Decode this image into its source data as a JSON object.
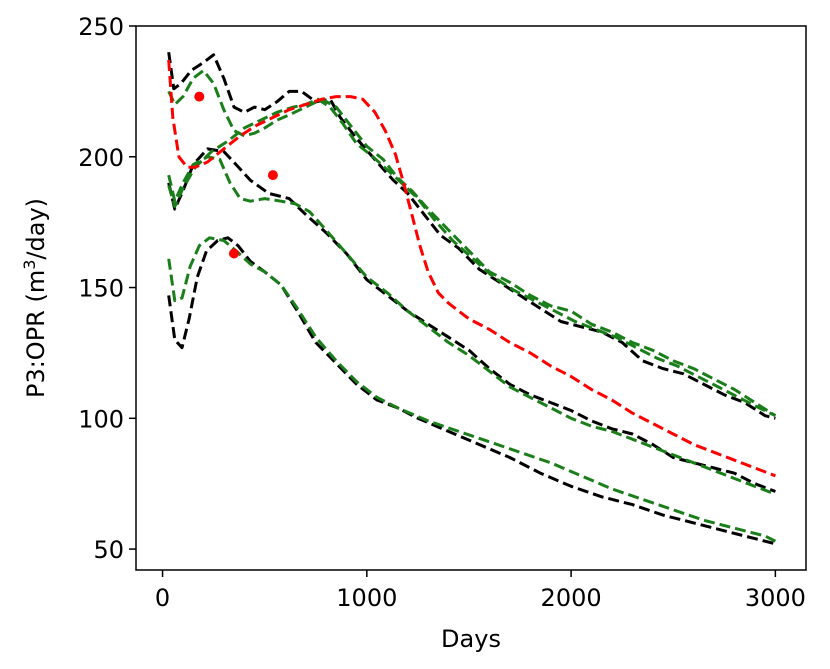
{
  "chart_data": {
    "type": "line",
    "xlabel": "Days",
    "ylabel_prefix": "P3:OPR (m",
    "ylabel_sup": "3",
    "ylabel_suffix": "/day)",
    "xlim": [
      -130,
      3150
    ],
    "ylim": [
      42,
      250
    ],
    "xticks": [
      0,
      1000,
      2000,
      3000
    ],
    "yticks": [
      50,
      100,
      150,
      200,
      250
    ],
    "grid": false,
    "colors": {
      "black": "#000000",
      "green": "#1a7f1a",
      "red": "#ff0000"
    },
    "series": [
      {
        "color": "black",
        "style": "dashed",
        "points": [
          [
            30,
            147
          ],
          [
            60,
            130
          ],
          [
            95,
            127
          ],
          [
            130,
            138
          ],
          [
            170,
            154
          ],
          [
            215,
            164
          ],
          [
            270,
            168
          ],
          [
            320,
            169
          ],
          [
            370,
            166
          ],
          [
            430,
            160
          ],
          [
            500,
            156
          ],
          [
            580,
            151
          ],
          [
            660,
            141
          ],
          [
            750,
            129
          ],
          [
            850,
            121
          ],
          [
            950,
            113
          ],
          [
            1050,
            107
          ],
          [
            1150,
            104
          ],
          [
            1250,
            100
          ],
          [
            1400,
            95
          ],
          [
            1550,
            90
          ],
          [
            1700,
            85
          ],
          [
            1850,
            79
          ],
          [
            2000,
            74
          ],
          [
            2150,
            70
          ],
          [
            2300,
            67
          ],
          [
            2450,
            63
          ],
          [
            2600,
            60
          ],
          [
            2750,
            57
          ],
          [
            2900,
            54
          ],
          [
            3000,
            52
          ]
        ]
      },
      {
        "color": "green",
        "style": "dashed",
        "points": [
          [
            30,
            161
          ],
          [
            60,
            145
          ],
          [
            95,
            146
          ],
          [
            135,
            158
          ],
          [
            180,
            166
          ],
          [
            230,
            169
          ],
          [
            300,
            168
          ],
          [
            360,
            164
          ],
          [
            430,
            159
          ],
          [
            500,
            156
          ],
          [
            580,
            151
          ],
          [
            660,
            142
          ],
          [
            750,
            131
          ],
          [
            850,
            122
          ],
          [
            950,
            114
          ],
          [
            1050,
            108
          ],
          [
            1150,
            104
          ],
          [
            1300,
            99
          ],
          [
            1450,
            95
          ],
          [
            1600,
            91
          ],
          [
            1750,
            87
          ],
          [
            1900,
            83
          ],
          [
            2050,
            78
          ],
          [
            2200,
            73
          ],
          [
            2350,
            69
          ],
          [
            2500,
            65
          ],
          [
            2650,
            61
          ],
          [
            2800,
            58
          ],
          [
            2950,
            55
          ],
          [
            3000,
            53
          ]
        ]
      },
      {
        "color": "black",
        "style": "dashed",
        "points": [
          [
            30,
            190
          ],
          [
            60,
            180
          ],
          [
            100,
            187
          ],
          [
            150,
            197
          ],
          [
            220,
            203
          ],
          [
            300,
            202
          ],
          [
            360,
            197
          ],
          [
            430,
            191
          ],
          [
            520,
            186
          ],
          [
            620,
            184
          ],
          [
            700,
            178
          ],
          [
            800,
            171
          ],
          [
            900,
            163
          ],
          [
            1000,
            153
          ],
          [
            1100,
            147
          ],
          [
            1200,
            141
          ],
          [
            1300,
            136
          ],
          [
            1400,
            131
          ],
          [
            1500,
            126
          ],
          [
            1600,
            119
          ],
          [
            1700,
            113
          ],
          [
            1800,
            109
          ],
          [
            1900,
            106
          ],
          [
            2000,
            103
          ],
          [
            2100,
            99
          ],
          [
            2200,
            96
          ],
          [
            2300,
            94
          ],
          [
            2400,
            90
          ],
          [
            2500,
            85
          ],
          [
            2600,
            83
          ],
          [
            2700,
            81
          ],
          [
            2800,
            79
          ],
          [
            2900,
            75
          ],
          [
            3000,
            72
          ]
        ]
      },
      {
        "color": "green",
        "style": "dashed",
        "points": [
          [
            30,
            193
          ],
          [
            60,
            183
          ],
          [
            100,
            190
          ],
          [
            150,
            197
          ],
          [
            220,
            200
          ],
          [
            280,
            199
          ],
          [
            330,
            190
          ],
          [
            380,
            184
          ],
          [
            430,
            183
          ],
          [
            500,
            184
          ],
          [
            580,
            183
          ],
          [
            650,
            182
          ],
          [
            720,
            179
          ],
          [
            800,
            172
          ],
          [
            900,
            163
          ],
          [
            1000,
            154
          ],
          [
            1100,
            148
          ],
          [
            1200,
            141
          ],
          [
            1300,
            135
          ],
          [
            1400,
            129
          ],
          [
            1500,
            124
          ],
          [
            1600,
            118
          ],
          [
            1700,
            112
          ],
          [
            1800,
            108
          ],
          [
            1900,
            104
          ],
          [
            2000,
            100
          ],
          [
            2100,
            97
          ],
          [
            2200,
            95
          ],
          [
            2300,
            92
          ],
          [
            2400,
            89
          ],
          [
            2500,
            86
          ],
          [
            2600,
            83
          ],
          [
            2700,
            80
          ],
          [
            2800,
            77
          ],
          [
            2900,
            74
          ],
          [
            3000,
            71
          ]
        ]
      },
      {
        "color": "black",
        "style": "dashed",
        "points": [
          [
            30,
            240
          ],
          [
            55,
            226
          ],
          [
            90,
            228
          ],
          [
            140,
            233
          ],
          [
            200,
            236
          ],
          [
            250,
            239
          ],
          [
            300,
            230
          ],
          [
            350,
            219
          ],
          [
            400,
            217
          ],
          [
            450,
            219
          ],
          [
            500,
            218
          ],
          [
            560,
            221
          ],
          [
            620,
            225
          ],
          [
            680,
            225
          ],
          [
            750,
            221
          ],
          [
            820,
            222
          ],
          [
            870,
            215
          ],
          [
            950,
            207
          ],
          [
            1050,
            198
          ],
          [
            1130,
            191
          ],
          [
            1200,
            186
          ],
          [
            1280,
            178
          ],
          [
            1360,
            170
          ],
          [
            1450,
            165
          ],
          [
            1550,
            157
          ],
          [
            1650,
            152
          ],
          [
            1750,
            147
          ],
          [
            1850,
            142
          ],
          [
            1950,
            137
          ],
          [
            2050,
            135
          ],
          [
            2150,
            133
          ],
          [
            2250,
            129
          ],
          [
            2350,
            122
          ],
          [
            2450,
            119
          ],
          [
            2550,
            117
          ],
          [
            2650,
            113
          ],
          [
            2750,
            109
          ],
          [
            2850,
            106
          ],
          [
            2950,
            101
          ],
          [
            3000,
            100
          ]
        ]
      },
      {
        "color": "green",
        "style": "dashed",
        "points": [
          [
            30,
            225
          ],
          [
            60,
            220
          ],
          [
            100,
            223
          ],
          [
            150,
            230
          ],
          [
            200,
            233
          ],
          [
            250,
            228
          ],
          [
            300,
            218
          ],
          [
            350,
            210
          ],
          [
            400,
            208
          ],
          [
            450,
            209
          ],
          [
            500,
            211
          ],
          [
            560,
            214
          ],
          [
            620,
            216
          ],
          [
            700,
            219
          ],
          [
            780,
            222
          ],
          [
            850,
            219
          ],
          [
            920,
            212
          ],
          [
            1000,
            204
          ],
          [
            1080,
            199
          ],
          [
            1150,
            192
          ],
          [
            1220,
            187
          ],
          [
            1300,
            180
          ],
          [
            1400,
            172
          ],
          [
            1500,
            164
          ],
          [
            1600,
            156
          ],
          [
            1700,
            152
          ],
          [
            1800,
            147
          ],
          [
            1900,
            143
          ],
          [
            2000,
            141
          ],
          [
            2100,
            136
          ],
          [
            2200,
            133
          ],
          [
            2300,
            129
          ],
          [
            2400,
            126
          ],
          [
            2500,
            122
          ],
          [
            2600,
            119
          ],
          [
            2700,
            115
          ],
          [
            2800,
            111
          ],
          [
            2900,
            106
          ],
          [
            3000,
            101
          ]
        ]
      },
      {
        "color": "green",
        "style": "dashed",
        "points": [
          [
            30,
            189
          ],
          [
            60,
            181
          ],
          [
            100,
            188
          ],
          [
            160,
            196
          ],
          [
            240,
            202
          ],
          [
            320,
            206
          ],
          [
            400,
            211
          ],
          [
            480,
            214
          ],
          [
            560,
            217
          ],
          [
            640,
            219
          ],
          [
            700,
            220
          ],
          [
            760,
            222
          ],
          [
            820,
            219
          ],
          [
            880,
            213
          ],
          [
            950,
            205
          ],
          [
            1030,
            200
          ],
          [
            1100,
            195
          ],
          [
            1170,
            190
          ],
          [
            1250,
            184
          ],
          [
            1330,
            176
          ],
          [
            1420,
            168
          ],
          [
            1520,
            161
          ],
          [
            1620,
            154
          ],
          [
            1720,
            149
          ],
          [
            1820,
            145
          ],
          [
            1920,
            141
          ],
          [
            2020,
            137
          ],
          [
            2120,
            134
          ],
          [
            2220,
            131
          ],
          [
            2320,
            127
          ],
          [
            2420,
            123
          ],
          [
            2520,
            120
          ],
          [
            2620,
            116
          ],
          [
            2720,
            112
          ],
          [
            2820,
            108
          ],
          [
            2920,
            104
          ],
          [
            3000,
            101
          ]
        ]
      },
      {
        "color": "red",
        "style": "dashed",
        "points": [
          [
            30,
            237
          ],
          [
            50,
            215
          ],
          [
            80,
            200
          ],
          [
            120,
            196
          ],
          [
            160,
            196
          ],
          [
            220,
            198
          ],
          [
            300,
            203
          ],
          [
            380,
            208
          ],
          [
            460,
            212
          ],
          [
            540,
            215
          ],
          [
            620,
            218
          ],
          [
            700,
            220
          ],
          [
            780,
            222
          ],
          [
            850,
            223
          ],
          [
            920,
            223
          ],
          [
            980,
            222
          ],
          [
            1040,
            217
          ],
          [
            1090,
            210
          ],
          [
            1140,
            201
          ],
          [
            1180,
            190
          ],
          [
            1220,
            178
          ],
          [
            1260,
            166
          ],
          [
            1300,
            156
          ],
          [
            1350,
            148
          ],
          [
            1400,
            144
          ],
          [
            1500,
            138
          ],
          [
            1600,
            134
          ],
          [
            1700,
            129
          ],
          [
            1800,
            125
          ],
          [
            1900,
            120
          ],
          [
            2000,
            116
          ],
          [
            2100,
            111
          ],
          [
            2200,
            107
          ],
          [
            2300,
            102
          ],
          [
            2400,
            98
          ],
          [
            2500,
            94
          ],
          [
            2600,
            90
          ],
          [
            2700,
            87
          ],
          [
            2800,
            84
          ],
          [
            2900,
            81
          ],
          [
            3000,
            78
          ]
        ]
      }
    ],
    "observations": {
      "color": "red",
      "points": [
        [
          180,
          223
        ],
        [
          540,
          193
        ],
        [
          350,
          163
        ]
      ]
    }
  }
}
